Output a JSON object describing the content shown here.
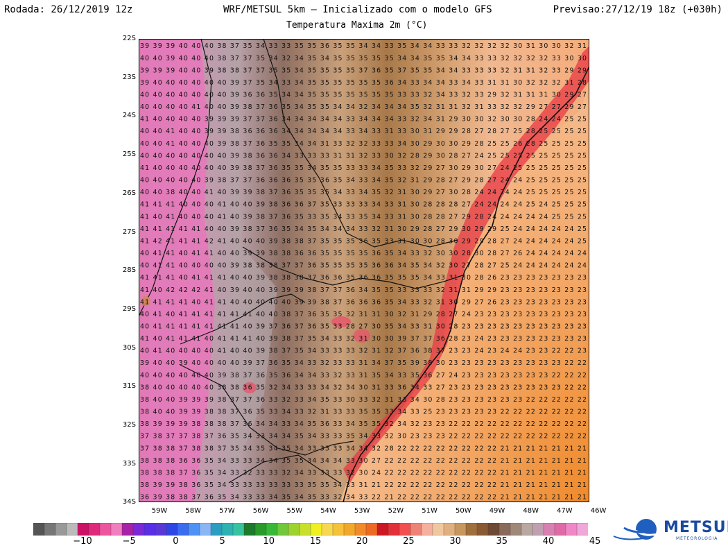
{
  "header": {
    "left": "Rodada: 26/12/2019 12z",
    "center": "WRF/METSUL 5km — Inicializado com o modelo GFS",
    "right": "Previsao:27/12/19 18z (+030h)",
    "subtitle": "Temperatura Maxima 2m (°C)"
  },
  "map": {
    "lat_labels": [
      "22S",
      "23S",
      "24S",
      "25S",
      "26S",
      "27S",
      "28S",
      "29S",
      "30S",
      "31S",
      "32S",
      "33S",
      "34S"
    ],
    "lon_labels": [
      "59W",
      "58W",
      "57W",
      "56W",
      "55W",
      "54W",
      "53W",
      "52W",
      "51W",
      "50W",
      "49W",
      "48W",
      "47W",
      "46W"
    ],
    "lat_range": [
      -22,
      -34
    ],
    "lon_range": [
      -59.5,
      -46
    ],
    "grid_rows": [
      "39 39 39 40 40 40 38 37 35 34 33 33 35 35 36 35 35 34 34 33 35 34 34 33 33 32 32 32 32 30 31 30 30 32 31",
      "40 40 39 40 40 40 38 37 37 35 34 32 34 35 34 35 35 35 35 35 34 34 35 35 34 34 33 33 32 32 32 32 33 30 30",
      "39 39 39 40 40 39 38 38 37 37 35 35 34 35 35 35 35 37 36 35 37 35 35 34 34 33 33 33 32 31 31 32 33 29 29",
      "39 40 40 40 40 40 40 39 37 35 34 33 34 35 35 35 35 35 35 36 34 33 34 34 33 34 33 31 31 30 32 32 32 31 28",
      "40 40 40 40 40 40 40 39 36 36 35 34 34 35 35 35 35 35 35 35 33 33 32 34 33 32 33 29 32 31 31 31 30 29 27",
      "40 40 40 40 41 40 40 39 38 37 36 35 34 35 35 34 34 32 34 34 34 35 32 31 31 32 31 33 32 32 29 27 27 29 27",
      "41 40 40 40 40 39 39 39 37 37 36 34 34 34 34 34 33 34 34 34 33 32 34 31 29 30 30 32 30 30 28 24 24 25 25",
      "40 40 41 40 40 39 39 38 36 36 36 34 34 34 34 34 33 34 33 31 33 30 31 29 29 28 27 28 27 25 28 25 25 25 25",
      "40 40 41 40 40 40 39 38 37 36 35 35 34 34 31 33 32 32 33 33 34 30 29 30 30 29 28 25 25 26 28 25 25 25 25",
      "40 40 40 40 40 40 40 39 38 36 36 34 33 33 33 31 31 32 33 30 32 28 29 30 28 27 24 25 25 25 25 25 25 25 25",
      "41 40 40 40 40 40 40 39 38 37 36 35 35 34 35 35 33 33 34 35 33 32 29 27 30 29 30 27 24 25 25 25 25 25 25",
      "40 40 40 40 40 39 38 37 37 36 36 36 35 35 36 35 34 33 34 35 32 31 29 28 27 29 28 27 24 24 25 25 25 25 25",
      "40 40 38 40 40 41 40 39 39 38 37 36 35 35 35 34 33 34 35 32 31 30 29 27 30 28 24 24 24 24 25 25 25 25 25",
      "41 41 41 40 40 40 41 40 40 39 38 36 36 37 35 33 33 33 34 33 31 30 28 28 28 27 24 24 24 24 25 24 25 25 25",
      "41 40 41 40 40 40 41 40 39 38 37 36 35 33 35 34 33 35 34 33 31 30 28 28 27 29 28 24 24 24 24 24 25 25 25",
      "41 41 41 41 41 40 40 39 38 37 36 35 34 35 34 34 34 33 32 31 30 29 28 27 29 30 29 29 25 24 24 24 24 24 25",
      "41 42 41 41 41 42 41 40 40 40 39 38 38 37 35 35 35 36 35 33 31 30 30 28 30 29 29 28 27 24 24 24 24 24 25",
      "40 41 41 40 41 41 40 40 39 39 38 38 36 36 35 35 35 35 36 35 34 33 32 30 30 28 30 28 27 26 24 24 24 24 24",
      "40 41 41 40 40 40 40 39 38 38 38 37 37 36 35 35 35 35 36 36 34 35 34 32 30 27 28 27 25 24 24 24 24 24 24",
      "41 41 41 40 41 41 41 40 40 39 38 38 38 37 36 36 35 36 36 35 35 35 34 33 31 30 28 26 23 23 23 23 23 23 23",
      "41 40 42 42 42 41 40 39 40 40 39 39 39 38 37 37 36 34 35 35 33 33 33 32 31 31 29 29 23 23 23 23 23 23 23",
      "41 41 41 41 40 41 41 40 40 40 40 40 39 39 38 37 36 36 36 35 34 33 32 31 30 29 27 26 23 23 23 23 23 23 23",
      "40 41 40 41 41 41 41 41 41 40 40 38 37 36 35 35 32 31 31 30 32 31 29 28 27 24 23 23 23 23 23 23 23 23 23",
      "40 41 41 41 41 41 41 41 40 39 37 36 37 36 35 33 28 27 30 35 34 33 31 30 28 23 23 23 23 23 23 23 23 23 23",
      "41 40 41 41 41 40 41 41 41 40 39 38 37 35 34 33 32 31 30 30 39 37 37 36 28 23 24 23 23 23 23 23 23 23 23",
      "40 41 40 40 40 40 41 40 40 39 38 37 35 34 33 33 33 32 31 32 37 36 38 37 23 23 24 23 24 24 23 23 22 22 23",
      "39 40 40 39 40 40 40 40 39 37 36 35 34 33 32 33 33 31 34 37 35 39 38 30 23 23 23 23 23 23 23 23 23 22 22",
      "40 40 40 40 40 40 39 38 37 36 35 36 34 34 33 32 33 31 35 34 33 35 36 27 24 23 23 23 23 23 23 23 22 22 22",
      "38 40 40 40 40 40 38 38 36 35 32 34 33 33 34 32 34 30 31 33 36 34 33 27 23 23 23 23 23 23 23 23 23 22 22",
      "38 40 40 39 39 39 38 37 37 36 33 32 33 34 35 33 30 33 32 31 33 34 30 28 23 23 23 23 23 23 22 22 22 22 22",
      "38 40 40 39 39 38 38 37 36 35 33 34 33 32 31 33 33 35 35 33 34 33 25 23 23 23 23 23 22 22 22 22 22 22 22",
      "38 39 39 39 38 38 38 37 36 34 34 33 34 35 36 33 34 35 35 32 34 32 23 23 22 22 22 22 22 22 22 22 22 22 22",
      "37 38 37 37 38 37 36 35 34 33 34 34 35 34 33 33 35 34 33 32 30 23 23 23 22 22 22 22 22 22 22 22 22 22 22",
      "37 38 38 37 38 38 37 35 34 35 34 35 34 33 33 33 34 34 32 28 22 22 22 22 22 22 22 22 21 21 21 21 21 21 21",
      "38 38 38 36 36 35 34 33 33 34 34 35 35 34 34 34 33 30 27 22 22 22 22 22 22 22 22 22 21 21 21 21 21 21 21",
      "38 38 38 37 36 35 34 33 32 33 33 32 34 33 33 33 32 30 24 22 22 22 22 22 22 22 22 22 21 21 21 21 21 21 21",
      "38 39 39 38 36 35 34 33 33 33 33 33 33 35 35 34 33 31 21 22 22 22 22 22 22 22 22 22 21 21 21 21 21 21 21",
      "36 39 38 38 37 36 35 34 33 33 34 35 34 35 33 32 34 33 22 21 22 22 22 22 22 22 22 22 21 21 21 21 21 21 21"
    ]
  },
  "colorbar": {
    "colors": [
      "#555555",
      "#777777",
      "#999999",
      "#bbbbbb",
      "#cc1166",
      "#e0287a",
      "#ee55a0",
      "#f07fbe",
      "#a722a7",
      "#7a2ad6",
      "#5a2ee6",
      "#5a38d6",
      "#2e46e6",
      "#3a6cf0",
      "#4f92f5",
      "#8ab6f8",
      "#2a9ec0",
      "#2fb2b2",
      "#36c4a0",
      "#1c7a2a",
      "#2a9a2a",
      "#38b838",
      "#70c83a",
      "#9ed22e",
      "#c8e02a",
      "#f0f020",
      "#f8d850",
      "#f6c23a",
      "#f2a82a",
      "#f18a2a",
      "#ee6a22",
      "#cc1822",
      "#e23038",
      "#f25050",
      "#ee8276",
      "#f6b0a0",
      "#f0c8a0",
      "#e0b080",
      "#c8975e",
      "#a0703c",
      "#8a5a32",
      "#6e4a36",
      "#8a6a5a",
      "#a08878",
      "#b8a8a0",
      "#c0a0b0",
      "#d880b0",
      "#e06aa8",
      "#f088c8",
      "#f0a8d8"
    ],
    "labels": [
      "−10",
      "−5",
      "0",
      "5",
      "10",
      "15",
      "20",
      "25",
      "30",
      "35",
      "40",
      "45"
    ]
  },
  "logo": {
    "word": "METSUL",
    "sub": "METEOROLOGIA"
  }
}
